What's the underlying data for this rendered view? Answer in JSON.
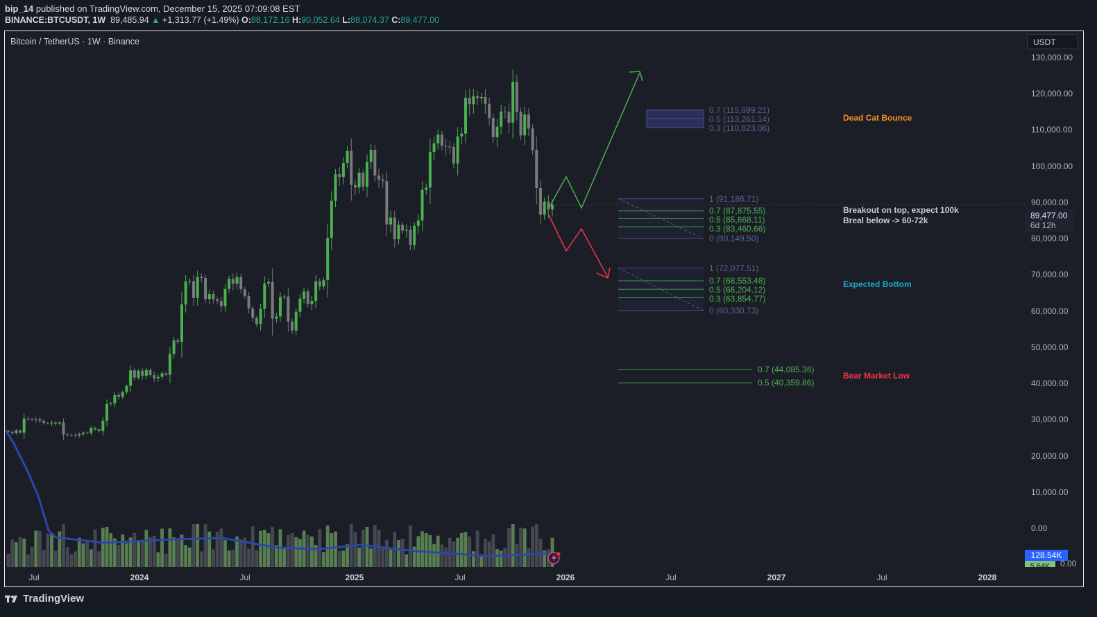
{
  "header": {
    "author": "bip_14",
    "published": "published on TradingView.com, December 15, 2025 07:09:08 EST",
    "symbol": "BINANCE:BTCUSDT, 1W",
    "last": "89,485.94",
    "change": "+1,313.77 (+1.49%)",
    "o_label": "O:",
    "o": "88,172.16",
    "h_label": "H:",
    "h": "90,052.64",
    "l_label": "L:",
    "l": "88,074.37",
    "c_label": "C:",
    "c": "89,477.00"
  },
  "chart": {
    "legend": "Bitcoin / TetherUS · 1W · Binance",
    "currency": "USDT",
    "price_label": "89,477.00",
    "countdown": "6d 12h",
    "volume_label": "128.54K",
    "volume_label2": "5.64K",
    "volume_zero": "0.00",
    "colors": {
      "up": "#4caf50",
      "down": "#7a7a7a",
      "ma": "#2b47a8",
      "bg": "#1b1e27"
    }
  },
  "chart_data": {
    "type": "candlestick",
    "y_ticks": [
      "130,000.00",
      "120,000.00",
      "110,000.00",
      "100,000.00",
      "90,000.00",
      "80,000.00",
      "70,000.00",
      "60,000.00",
      "50,000.00",
      "40,000.00",
      "30,000.00",
      "20,000.00",
      "10,000.00",
      "0.00"
    ],
    "y_tick_values": [
      130000,
      120000,
      110000,
      100000,
      90000,
      80000,
      70000,
      60000,
      50000,
      40000,
      30000,
      20000,
      10000,
      0
    ],
    "x_ticks": [
      {
        "label": "Jul",
        "year": false
      },
      {
        "label": "2024",
        "year": true
      },
      {
        "label": "Jul",
        "year": false
      },
      {
        "label": "2025",
        "year": true
      },
      {
        "label": "Jul",
        "year": false
      },
      {
        "label": "2026",
        "year": true
      },
      {
        "label": "Jul",
        "year": false
      },
      {
        "label": "2027",
        "year": true
      },
      {
        "label": "Jul",
        "year": false
      },
      {
        "label": "2028",
        "year": true
      }
    ],
    "first_open": 27000,
    "weekly_close_k": [
      26.8,
      26.5,
      27.2,
      26.6,
      30.5,
      30.4,
      30.2,
      30.3,
      29.9,
      29.3,
      29.2,
      29.4,
      29.1,
      29.4,
      26.1,
      26.0,
      25.9,
      25.8,
      26.2,
      26.6,
      26.5,
      27.9,
      27.5,
      27.0,
      29.9,
      34.5,
      34.7,
      37.0,
      36.5,
      37.8,
      39.5,
      43.8,
      41.8,
      43.7,
      42.3,
      43.9,
      42.5,
      41.6,
      42.0,
      43.0,
      42.6,
      48.3,
      52.1,
      51.7,
      62.0,
      68.3,
      68.4,
      63.8,
      69.6,
      69.3,
      63.5,
      64.9,
      63.4,
      63.0,
      61.5,
      66.3,
      69.1,
      67.7,
      69.6,
      66.2,
      64.3,
      60.9,
      58.3,
      56.6,
      60.8,
      67.8,
      68.2,
      58.1,
      58.7,
      64.1,
      64.2,
      57.3,
      54.8,
      60.0,
      63.6,
      65.6,
      62.1,
      63.0,
      68.4,
      67.0,
      68.7,
      80.4,
      90.6,
      98.0,
      97.2,
      101.1,
      104.4,
      95.0,
      94.3,
      98.4,
      94.5,
      101.3,
      104.7,
      97.6,
      96.5,
      96.1,
      84.1,
      86.0,
      80.0,
      84.0,
      82.4,
      82.6,
      78.4,
      83.7,
      85.2,
      93.7,
      94.3,
      104.1,
      106.5,
      108.9,
      105.8,
      105.6,
      105.5,
      100.9,
      108.4,
      109.2,
      119.1,
      117.3,
      119.5,
      119.0,
      119.3,
      117.4,
      113.5,
      108.2,
      111.1,
      115.3,
      115.2,
      112.2,
      123.5,
      115.2,
      108.7,
      114.5,
      110.6,
      104.7,
      94.2,
      86.8,
      90.4,
      88.2,
      89.5
    ]
  },
  "fibs": [
    {
      "levels": [
        {
          "r": "0.7",
          "p": 115699.21,
          "label": "0.7 (115,699.21)"
        },
        {
          "r": "0.5",
          "p": 113261.14,
          "label": "0.5 (113,261.14)"
        },
        {
          "r": "0.3",
          "p": 110823.06,
          "label": "0.3 (110,823.06)"
        }
      ]
    },
    {
      "levels": [
        {
          "r": "1",
          "p": 91186.71,
          "label": "1 (91,186.71)"
        },
        {
          "r": "0.7",
          "p": 87875.55,
          "label": "0.7 (87,875.55)"
        },
        {
          "r": "0.5",
          "p": 85668.11,
          "label": "0.5 (85,668.11)"
        },
        {
          "r": "0.3",
          "p": 83460.66,
          "label": "0.3 (83,460.66)"
        },
        {
          "r": "0",
          "p": 80149.5,
          "label": "0 (80,149.50)"
        }
      ]
    },
    {
      "levels": [
        {
          "r": "1",
          "p": 72077.51,
          "label": "1 (72,077.51)"
        },
        {
          "r": "0.7",
          "p": 68553.48,
          "label": "0.7 (68,553.48)"
        },
        {
          "r": "0.5",
          "p": 66204.12,
          "label": "0.5 (66,204.12)"
        },
        {
          "r": "0.3",
          "p": 63854.77,
          "label": "0.3 (63,854.77)"
        },
        {
          "r": "0",
          "p": 60330.73,
          "label": "0 (60,330.73)"
        }
      ]
    },
    {
      "levels": [
        {
          "r": "0.7",
          "p": 44085.36,
          "label": "0.7 (44,085.36)"
        },
        {
          "r": "0.5",
          "p": 40359.86,
          "label": "0.5 (40,359.86)"
        }
      ]
    }
  ],
  "notes": {
    "dead_cat": "Dead Cat Bounce",
    "breakout1": "Breakout on top, expect 100k",
    "breakout2": "Breal below -> 60-72k",
    "expected_bottom": "Expected Bottom",
    "bear_low": "Bear Market Low",
    "colors": {
      "dead_cat": "#f7931a",
      "breakout": "#c8cbd2",
      "expected_bottom": "#22a8c9",
      "bear_low": "#f23645"
    }
  },
  "footer": {
    "brand": "TradingView"
  }
}
